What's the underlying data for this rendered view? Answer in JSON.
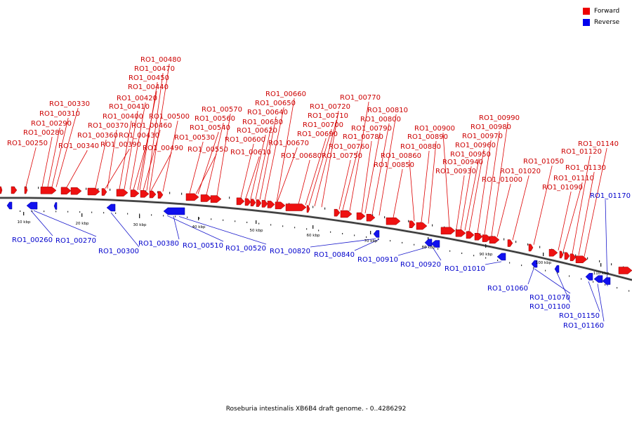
{
  "legend": {
    "forward": {
      "label": "Forward",
      "color": "#ee0000"
    },
    "reverse": {
      "label": "Reverse",
      "color": "#0000ee"
    }
  },
  "caption": "Roseburia intestinalis XB6B4 draft genome. - 0..4286292",
  "scale_labels": [
    "10 kbp",
    "20 kbp",
    "30 kbp",
    "40 kbp",
    "50 kbp",
    "60 kbp",
    "70 kbp",
    "80 kbp",
    "90 kbp",
    "100 kbp",
    "110 kbp"
  ],
  "forward_labels": [
    "RO1_00250",
    "RO1_00280",
    "RO1_00290",
    "RO1_00310",
    "RO1_00330",
    "RO1_00340",
    "RO1_00360",
    "RO1_00370",
    "RO1_00390",
    "RO1_00400",
    "RO1_00410",
    "RO1_00420",
    "RO1_00430",
    "RO1_00440",
    "RO1_00450",
    "RO1_00460",
    "RO1_00470",
    "RO1_00480",
    "RO1_00490",
    "RO1_00500",
    "RO1_00530",
    "RO1_00540",
    "RO1_00550",
    "RO1_00560",
    "RO1_00570",
    "RO1_00600",
    "RO1_00610",
    "RO1_00620",
    "RO1_00630",
    "RO1_00640",
    "RO1_00650",
    "RO1_00660",
    "RO1_00670",
    "RO1_00680",
    "RO1_00690",
    "RO1_00700",
    "RO1_00710",
    "RO1_00720",
    "RO1_00750",
    "RO1_00760",
    "RO1_00770",
    "RO1_00780",
    "RO1_00790",
    "RO1_00800",
    "RO1_00810",
    "RO1_00850",
    "RO1_00860",
    "RO1_00880",
    "RO1_00890",
    "RO1_00900",
    "RO1_00930",
    "RO1_00940",
    "RO1_00950",
    "RO1_00960",
    "RO1_00970",
    "RO1_00980",
    "RO1_00990",
    "RO1_01000",
    "RO1_01020",
    "RO1_01050",
    "RO1_01090",
    "RO1_01110",
    "RO1_01120",
    "RO1_01130",
    "RO1_01140"
  ],
  "reverse_labels": [
    "RO1_00260",
    "RO1_00270",
    "RO1_00300",
    "RO1_00380",
    "RO1_00510",
    "RO1_00520",
    "RO1_00820",
    "RO1_00840",
    "RO1_00910",
    "RO1_00920",
    "RO1_01010",
    "RO1_01060",
    "RO1_01070",
    "RO1_01100",
    "RO1_01150",
    "RO1_01160",
    "RO1_01170"
  ]
}
